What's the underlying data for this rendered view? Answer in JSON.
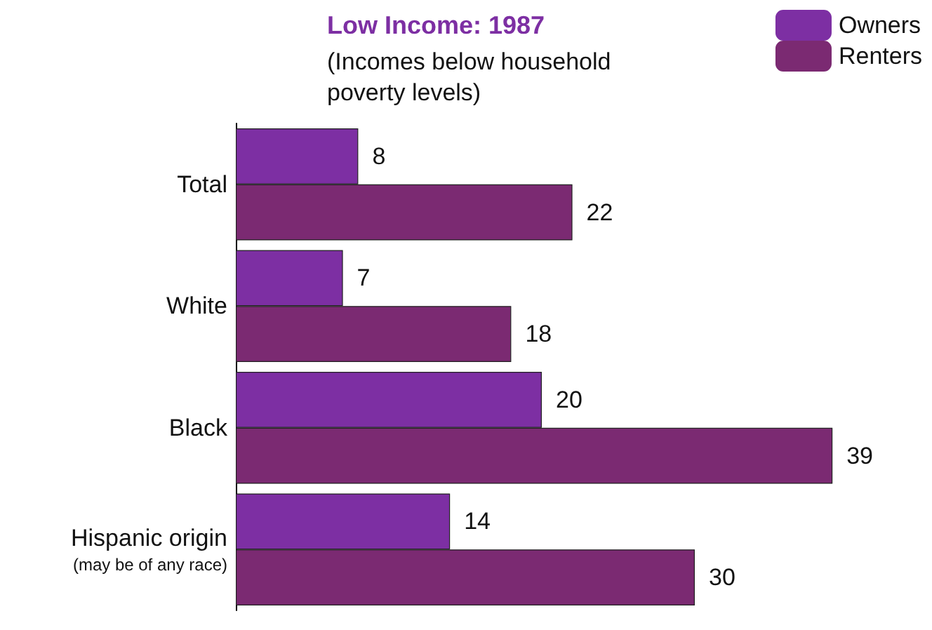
{
  "chart_data": {
    "type": "bar",
    "orientation": "horizontal",
    "title": "Low Income: 1987",
    "subtitle": "(Incomes below household\npoverty levels)",
    "categories": [
      "Total",
      "White",
      "Black",
      "Hispanic origin\n(may be of any race)"
    ],
    "series": [
      {
        "name": "Owners",
        "color": "#7d2fa3",
        "values": [
          8,
          7,
          20,
          14
        ]
      },
      {
        "name": "Renters",
        "color": "#7b2a72",
        "values": [
          22,
          18,
          39,
          30
        ]
      }
    ],
    "data_labels": true,
    "legend": "top right",
    "grid": false
  }
}
